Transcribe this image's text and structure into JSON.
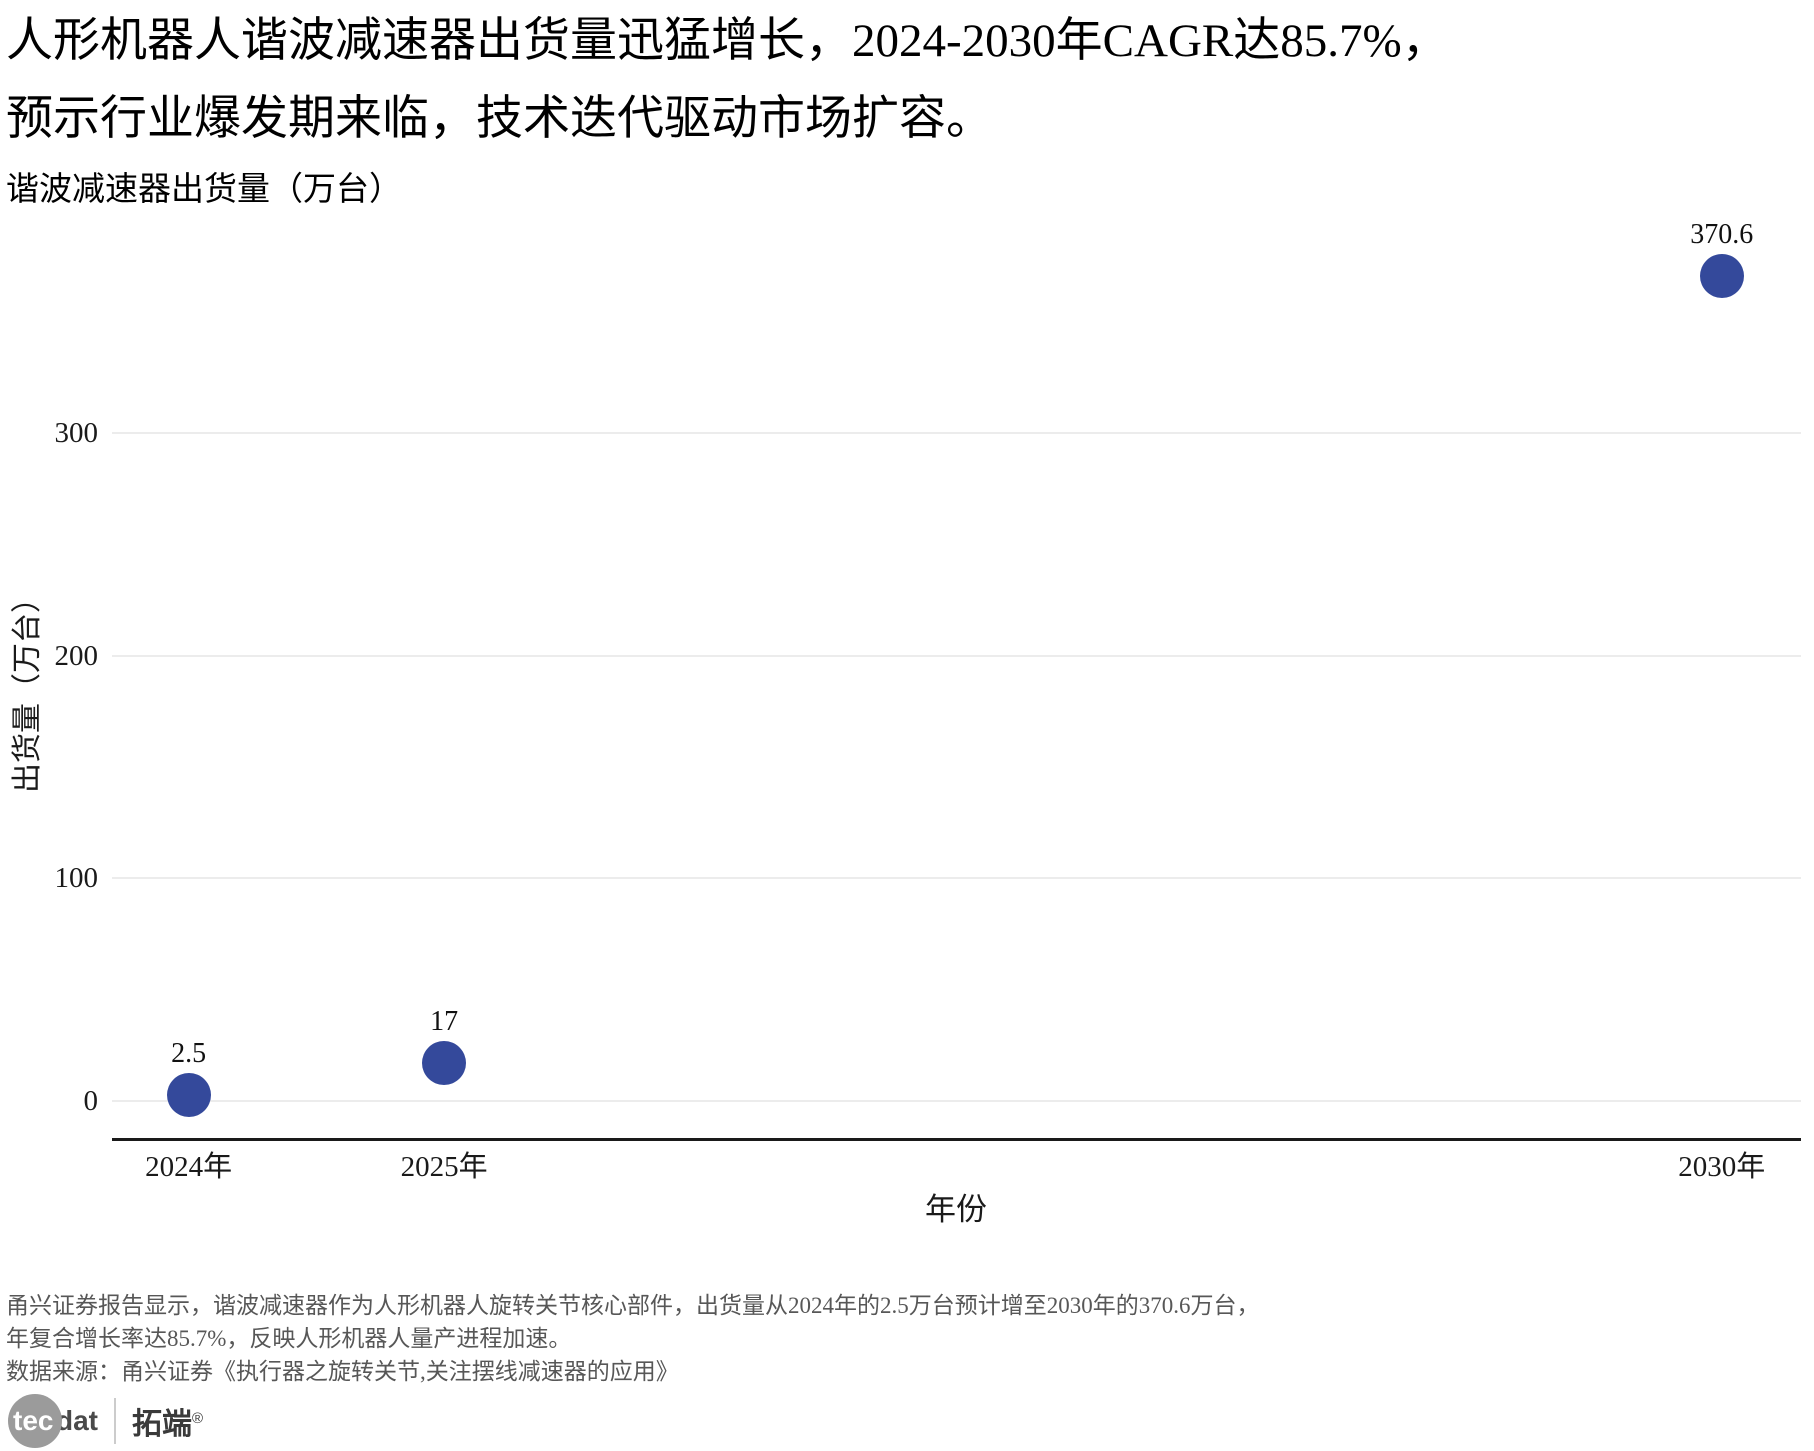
{
  "title": {
    "line1": "人形机器人谐波减速器出货量迅猛增长，2024-2030年CAGR达85.7%，",
    "line2": "预示行业爆发期来临，技术迭代驱动市场扩容。",
    "subtitle": "谐波减速器出货量（万台）"
  },
  "chart_data": {
    "type": "scatter",
    "title": "谐波减速器出货量（万台）",
    "xlabel": "年份",
    "ylabel": "出货量（万台）",
    "x_years": [
      2024,
      2025,
      2030
    ],
    "categories": [
      "2024年",
      "2025年",
      "2030年"
    ],
    "values": [
      2.5,
      17,
      370.6
    ],
    "point_labels": [
      "2.5",
      "17",
      "370.6"
    ],
    "yticks": [
      0,
      100,
      200,
      300
    ],
    "ytick_labels": [
      "0",
      "100",
      "200",
      "300"
    ],
    "ylim": [
      0,
      396
    ],
    "xlim": [
      2023.7,
      2030.31
    ],
    "grid": "horizontal",
    "legend_position": "none",
    "point_color": "#34499B"
  },
  "colors": {
    "point": "#34499B",
    "gridline": "#ECECEC",
    "axis_line": "#1A1A1A",
    "tick_text": "#1A1A1A",
    "footer_text": "#575757",
    "logo_circle": "#9B9B9B"
  },
  "footer": {
    "line1": "甬兴证券报告显示，谐波减速器作为人形机器人旋转关节核心部件，出货量从2024年的2.5万台预计增至2030年的370.6万台，",
    "line2": "年复合增长率达85.7%，反映人形机器人量产进程加速。",
    "line3": "数据来源：甬兴证券《执行器之旋转关节,关注摆线减速器的应用》"
  },
  "logo": {
    "tec": "tec",
    "dat": "dat",
    "brand": "拓端",
    "reg": "®"
  }
}
